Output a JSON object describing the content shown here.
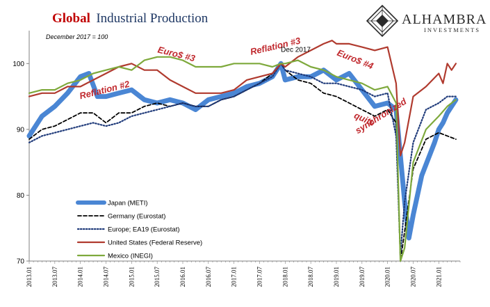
{
  "header": {
    "title_part1": "Global",
    "title_part2": "Industrial Production",
    "subtitle": "December 2017 = 100"
  },
  "brand": {
    "name": "ALHAMBRA",
    "tagline": "INVESTMENTS"
  },
  "colors": {
    "japan": "#4a86d4",
    "germany": "#000000",
    "europe": "#1f3a7a",
    "us": "#b03a2e",
    "mexico": "#7ea93c",
    "annotation": "#c0282d",
    "axis": "#808080"
  },
  "annotations": [
    {
      "text": "Reflation #2",
      "color": "red",
      "x": "2014.01",
      "y": 94.6,
      "rotate": -14
    },
    {
      "text": "Euro$ #3",
      "color": "red",
      "x": "2015.07",
      "y": 101.7,
      "rotate": 14
    },
    {
      "text": "Reflation #3",
      "color": "red",
      "x": "2017.05",
      "y": 101.3,
      "rotate": -13
    },
    {
      "text": "Dec 2017",
      "color": "black",
      "x": "2017.12",
      "y": 101.8,
      "rotate": 0
    },
    {
      "text": "Euro$ #4",
      "color": "red",
      "x": "2019.01",
      "y": 101.3,
      "rotate": 22
    },
    {
      "text": "quite",
      "color": "red",
      "x": "2019.05",
      "y": 91.8,
      "rotate": 24
    },
    {
      "text": "synchronized",
      "color": "red",
      "x": "2019.06",
      "y": 89.3,
      "rotate": -32
    }
  ],
  "chart_data": {
    "type": "line",
    "title": "Global Industrial Production",
    "subtitle": "December 2017 = 100",
    "xlabel": "",
    "ylabel": "",
    "ylim": [
      70,
      105
    ],
    "yticks": [
      70,
      80,
      90,
      100
    ],
    "xticks": [
      "2013.01",
      "2013.07",
      "2014.01",
      "2014.07",
      "2015.01",
      "2015.07",
      "2016.01",
      "2016.07",
      "2017.01",
      "2017.07",
      "2018.01",
      "2018.07",
      "2019.01",
      "2019.07",
      "2020.01",
      "2020.07",
      "2021.01"
    ],
    "grid": false,
    "legend_position": "bottom-left",
    "series": [
      {
        "name": "Japan (METI)",
        "style": "thick",
        "points": [
          [
            "2013.01",
            89
          ],
          [
            "2013.04",
            92
          ],
          [
            "2013.07",
            93.5
          ],
          [
            "2013.10",
            95.5
          ],
          [
            "2014.01",
            98
          ],
          [
            "2014.03",
            98.5
          ],
          [
            "2014.05",
            95
          ],
          [
            "2014.07",
            95
          ],
          [
            "2014.10",
            95.5
          ],
          [
            "2015.01",
            96
          ],
          [
            "2015.04",
            94.5
          ],
          [
            "2015.07",
            94
          ],
          [
            "2015.10",
            94.5
          ],
          [
            "2016.01",
            94
          ],
          [
            "2016.04",
            93
          ],
          [
            "2016.07",
            94.5
          ],
          [
            "2016.10",
            95
          ],
          [
            "2017.01",
            95.5
          ],
          [
            "2017.04",
            96.5
          ],
          [
            "2017.07",
            97
          ],
          [
            "2017.10",
            98
          ],
          [
            "2017.12",
            100
          ],
          [
            "2018.01",
            97.5
          ],
          [
            "2018.04",
            98
          ],
          [
            "2018.07",
            98
          ],
          [
            "2018.10",
            99
          ],
          [
            "2019.01",
            97.5
          ],
          [
            "2019.04",
            98.5
          ],
          [
            "2019.07",
            96
          ],
          [
            "2019.10",
            93.5
          ],
          [
            "2020.01",
            94
          ],
          [
            "2020.03",
            93
          ],
          [
            "2020.05",
            79
          ],
          [
            "2020.06",
            73.5
          ],
          [
            "2020.07",
            77
          ],
          [
            "2020.09",
            83
          ],
          [
            "2020.12",
            88
          ],
          [
            "2021.01",
            90
          ],
          [
            "2021.02",
            91
          ],
          [
            "2021.03",
            92.5
          ],
          [
            "2021.04",
            93.5
          ],
          [
            "2021.05",
            94.5
          ]
        ]
      },
      {
        "name": "Germany (Eurostat)",
        "style": "dashed",
        "points": [
          [
            "2013.01",
            88.5
          ],
          [
            "2013.04",
            90
          ],
          [
            "2013.07",
            90.5
          ],
          [
            "2013.10",
            91.5
          ],
          [
            "2014.01",
            92.5
          ],
          [
            "2014.04",
            92.5
          ],
          [
            "2014.07",
            91
          ],
          [
            "2014.10",
            92.5
          ],
          [
            "2015.01",
            92.5
          ],
          [
            "2015.04",
            93.5
          ],
          [
            "2015.07",
            94
          ],
          [
            "2015.10",
            93.5
          ],
          [
            "2016.01",
            94
          ],
          [
            "2016.04",
            93.5
          ],
          [
            "2016.07",
            93.5
          ],
          [
            "2016.10",
            94.5
          ],
          [
            "2017.01",
            95
          ],
          [
            "2017.04",
            96
          ],
          [
            "2017.07",
            97
          ],
          [
            "2017.10",
            98.5
          ],
          [
            "2017.12",
            100
          ],
          [
            "2018.01",
            99
          ],
          [
            "2018.04",
            97.5
          ],
          [
            "2018.07",
            97
          ],
          [
            "2018.10",
            95.5
          ],
          [
            "2019.01",
            95
          ],
          [
            "2019.04",
            94
          ],
          [
            "2019.07",
            93
          ],
          [
            "2019.10",
            92
          ],
          [
            "2020.01",
            93
          ],
          [
            "2020.03",
            91
          ],
          [
            "2020.04",
            70
          ],
          [
            "2020.05",
            74.5
          ],
          [
            "2020.07",
            84
          ],
          [
            "2020.10",
            88.5
          ],
          [
            "2021.01",
            89.5
          ],
          [
            "2021.03",
            89
          ],
          [
            "2021.05",
            88.5
          ]
        ]
      },
      {
        "name": "Europe; EA19 (Eurostat)",
        "style": "dotted",
        "points": [
          [
            "2013.01",
            88
          ],
          [
            "2013.04",
            89
          ],
          [
            "2013.07",
            89.5
          ],
          [
            "2013.10",
            90
          ],
          [
            "2014.01",
            90.5
          ],
          [
            "2014.04",
            91
          ],
          [
            "2014.07",
            90.5
          ],
          [
            "2014.10",
            91
          ],
          [
            "2015.01",
            92
          ],
          [
            "2015.04",
            92.5
          ],
          [
            "2015.07",
            93
          ],
          [
            "2015.10",
            93.5
          ],
          [
            "2016.01",
            94
          ],
          [
            "2016.04",
            93.5
          ],
          [
            "2016.07",
            93.5
          ],
          [
            "2016.10",
            94.5
          ],
          [
            "2017.01",
            95
          ],
          [
            "2017.04",
            96
          ],
          [
            "2017.07",
            97
          ],
          [
            "2017.10",
            98
          ],
          [
            "2017.12",
            100
          ],
          [
            "2018.01",
            99
          ],
          [
            "2018.04",
            98.5
          ],
          [
            "2018.07",
            98
          ],
          [
            "2018.10",
            97
          ],
          [
            "2019.01",
            97
          ],
          [
            "2019.04",
            96.5
          ],
          [
            "2019.07",
            96
          ],
          [
            "2019.10",
            95
          ],
          [
            "2020.01",
            95.5
          ],
          [
            "2020.03",
            89
          ],
          [
            "2020.04",
            71
          ],
          [
            "2020.05",
            79
          ],
          [
            "2020.07",
            88
          ],
          [
            "2020.10",
            93
          ],
          [
            "2021.01",
            94
          ],
          [
            "2021.03",
            95
          ],
          [
            "2021.05",
            95
          ]
        ]
      },
      {
        "name": "United States (Federal Reserve)",
        "style": "solid",
        "points": [
          [
            "2013.01",
            95
          ],
          [
            "2013.04",
            95.5
          ],
          [
            "2013.07",
            95.5
          ],
          [
            "2013.10",
            96.5
          ],
          [
            "2014.01",
            96.5
          ],
          [
            "2014.04",
            97.5
          ],
          [
            "2014.07",
            98.5
          ],
          [
            "2014.10",
            99.5
          ],
          [
            "2015.01",
            100
          ],
          [
            "2015.04",
            99
          ],
          [
            "2015.07",
            99
          ],
          [
            "2015.10",
            97.5
          ],
          [
            "2016.01",
            96.5
          ],
          [
            "2016.04",
            95.5
          ],
          [
            "2016.07",
            95.5
          ],
          [
            "2016.10",
            95.5
          ],
          [
            "2017.01",
            96
          ],
          [
            "2017.04",
            97.5
          ],
          [
            "2017.07",
            98
          ],
          [
            "2017.10",
            98.5
          ],
          [
            "2017.12",
            100
          ],
          [
            "2018.01",
            99.5
          ],
          [
            "2018.04",
            101
          ],
          [
            "2018.07",
            102
          ],
          [
            "2018.10",
            103
          ],
          [
            "2018.12",
            103.5
          ],
          [
            "2019.01",
            103
          ],
          [
            "2019.04",
            103
          ],
          [
            "2019.07",
            102.5
          ],
          [
            "2019.10",
            102
          ],
          [
            "2020.01",
            102.5
          ],
          [
            "2020.03",
            97
          ],
          [
            "2020.04",
            86
          ],
          [
            "2020.05",
            88
          ],
          [
            "2020.07",
            95
          ],
          [
            "2020.10",
            96.5
          ],
          [
            "2021.01",
            98.5
          ],
          [
            "2021.02",
            97
          ],
          [
            "2021.03",
            100
          ],
          [
            "2021.04",
            99
          ],
          [
            "2021.05",
            100
          ]
        ]
      },
      {
        "name": "Mexico (INEGI)",
        "style": "solid",
        "points": [
          [
            "2013.01",
            95.5
          ],
          [
            "2013.04",
            96
          ],
          [
            "2013.07",
            96
          ],
          [
            "2013.10",
            97
          ],
          [
            "2014.01",
            97.5
          ],
          [
            "2014.04",
            98.5
          ],
          [
            "2014.07",
            99
          ],
          [
            "2014.10",
            99.5
          ],
          [
            "2015.01",
            99
          ],
          [
            "2015.04",
            100.5
          ],
          [
            "2015.07",
            101
          ],
          [
            "2015.10",
            101
          ],
          [
            "2016.01",
            100.5
          ],
          [
            "2016.04",
            99.5
          ],
          [
            "2016.07",
            99.5
          ],
          [
            "2016.10",
            99.5
          ],
          [
            "2017.01",
            100
          ],
          [
            "2017.04",
            100
          ],
          [
            "2017.07",
            100
          ],
          [
            "2017.10",
            99.5
          ],
          [
            "2017.12",
            100
          ],
          [
            "2018.01",
            100
          ],
          [
            "2018.04",
            100.5
          ],
          [
            "2018.07",
            99.5
          ],
          [
            "2018.10",
            99
          ],
          [
            "2019.01",
            98
          ],
          [
            "2019.04",
            97.5
          ],
          [
            "2019.07",
            97
          ],
          [
            "2019.10",
            96
          ],
          [
            "2020.01",
            96.5
          ],
          [
            "2020.03",
            94
          ],
          [
            "2020.04",
            70
          ],
          [
            "2020.05",
            72
          ],
          [
            "2020.07",
            85
          ],
          [
            "2020.10",
            90
          ],
          [
            "2021.01",
            92
          ],
          [
            "2021.03",
            93.5
          ],
          [
            "2021.05",
            94.5
          ]
        ]
      }
    ]
  }
}
